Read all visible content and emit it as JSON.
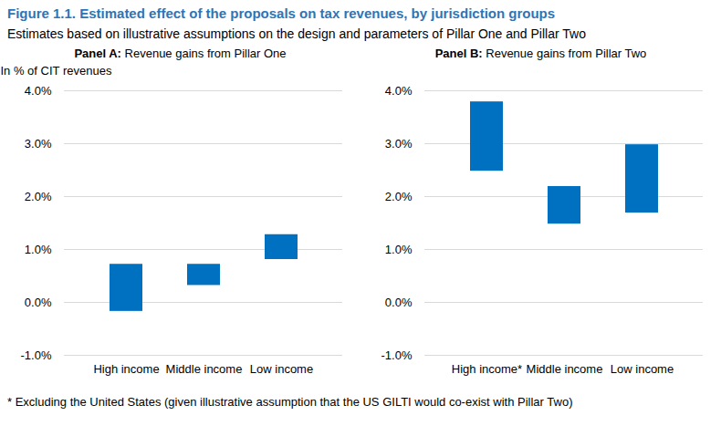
{
  "title": "Figure 1.1. Estimated effect of the proposals on tax revenues, by jurisdiction groups",
  "subtitle": "Estimates based on illustrative assumptions on the design and parameters of Pillar One and Pillar Two",
  "footnote": "* Excluding the United States (given illustrative assumption that the US GILTI would co-exist with Pillar Two)",
  "chart_data": [
    {
      "type": "range",
      "title": "Panel A: Revenue gains from Pillar One",
      "y_label": "In % of CIT revenues",
      "categories": [
        "High income",
        "Middle income",
        "Low income"
      ],
      "values": [
        [
          -0.17,
          0.72
        ],
        [
          0.32,
          0.72
        ],
        [
          0.81,
          1.28
        ]
      ],
      "color": "#0070c0",
      "ylim": [
        -1,
        4
      ],
      "yticks": [
        {
          "value": -1,
          "label": "-1.0%"
        },
        {
          "value": 0,
          "label": "0.0%"
        },
        {
          "value": 1,
          "label": "1.0%"
        },
        {
          "value": 2,
          "label": "2.0%"
        },
        {
          "value": 3,
          "label": "3.0%"
        },
        {
          "value": 4,
          "label": "4.0%"
        }
      ],
      "grid": true
    },
    {
      "type": "range",
      "title": "Panel B: Revenue gains from Pillar Two",
      "categories": [
        "High income*",
        "Middle income",
        "Low income"
      ],
      "values": [
        [
          2.48,
          3.79
        ],
        [
          1.48,
          2.19
        ],
        [
          1.69,
          2.98
        ]
      ],
      "color": "#0070c0",
      "ylim": [
        -1,
        4
      ],
      "yticks": [
        {
          "value": -1,
          "label": "-1.0%"
        },
        {
          "value": 0,
          "label": "0.0%"
        },
        {
          "value": 1,
          "label": "1.0%"
        },
        {
          "value": 2,
          "label": "2.0%"
        },
        {
          "value": 3,
          "label": "3.0%"
        },
        {
          "value": 4,
          "label": "4.0%"
        }
      ],
      "grid": true
    }
  ]
}
